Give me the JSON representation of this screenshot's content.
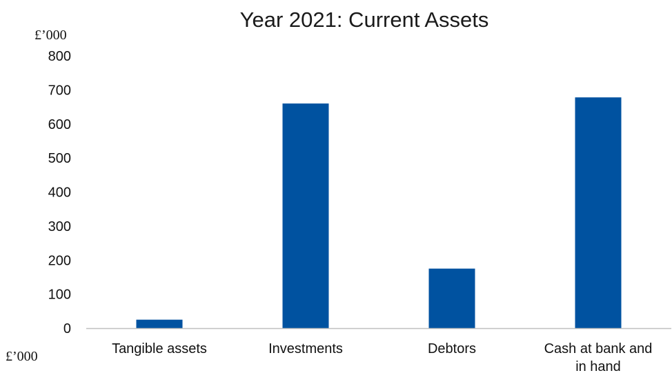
{
  "chart_data": {
    "type": "bar",
    "title": "Year 2021: Current Assets",
    "ylabel": "£’000",
    "xlabel": "£’000",
    "categories": [
      [
        "Tangible assets"
      ],
      [
        "Investments"
      ],
      [
        "Debtors"
      ],
      [
        "Cash at bank and",
        "in hand"
      ]
    ],
    "values": [
      25,
      660,
      175,
      678
    ],
    "ylim": [
      0,
      800
    ],
    "yticks": [
      0,
      100,
      200,
      300,
      400,
      500,
      600,
      700,
      800
    ],
    "grid": false,
    "bar_color": "#0052a0",
    "axis_color": "#bfbfbf"
  }
}
